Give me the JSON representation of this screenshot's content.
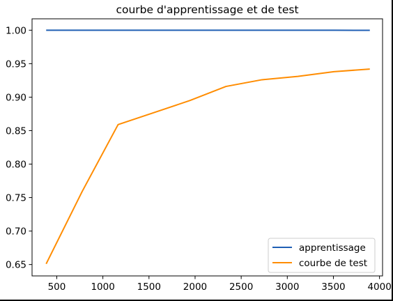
{
  "chart_data": {
    "type": "line",
    "title": "courbe d'apprentissage et de test",
    "xlabel": "",
    "ylabel": "",
    "xlim": [
      232,
      4033
    ],
    "ylim": [
      0.633,
      1.017
    ],
    "x_ticks": [
      500,
      1000,
      1500,
      2000,
      2500,
      3000,
      3500,
      4000
    ],
    "y_ticks": [
      0.65,
      0.7,
      0.75,
      0.8,
      0.85,
      0.9,
      0.95,
      1.0
    ],
    "x_tick_labels": [
      "500",
      "1000",
      "1500",
      "2000",
      "2500",
      "3000",
      "3500",
      "4000"
    ],
    "y_tick_labels": [
      "0.65",
      "0.70",
      "0.75",
      "0.80",
      "0.85",
      "0.90",
      "0.95",
      "1.00"
    ],
    "legend_position": "lower-right",
    "grid": false,
    "series": [
      {
        "name": "apprentissage",
        "color": "#1f5fb4",
        "x": [
          385,
          775,
          1165,
          1555,
          1945,
          2335,
          2725,
          3115,
          3505,
          3895
        ],
        "y": [
          1.0,
          1.0,
          1.0,
          1.0,
          1.0,
          1.0,
          1.0,
          1.0,
          1.0,
          0.9998
        ]
      },
      {
        "name": "courbe de test",
        "color": "#ff8c00",
        "x": [
          385,
          775,
          1165,
          1555,
          1945,
          2335,
          2725,
          3115,
          3505,
          3895
        ],
        "y": [
          0.651,
          0.759,
          0.859,
          0.877,
          0.895,
          0.916,
          0.926,
          0.931,
          0.938,
          0.942
        ]
      }
    ]
  }
}
